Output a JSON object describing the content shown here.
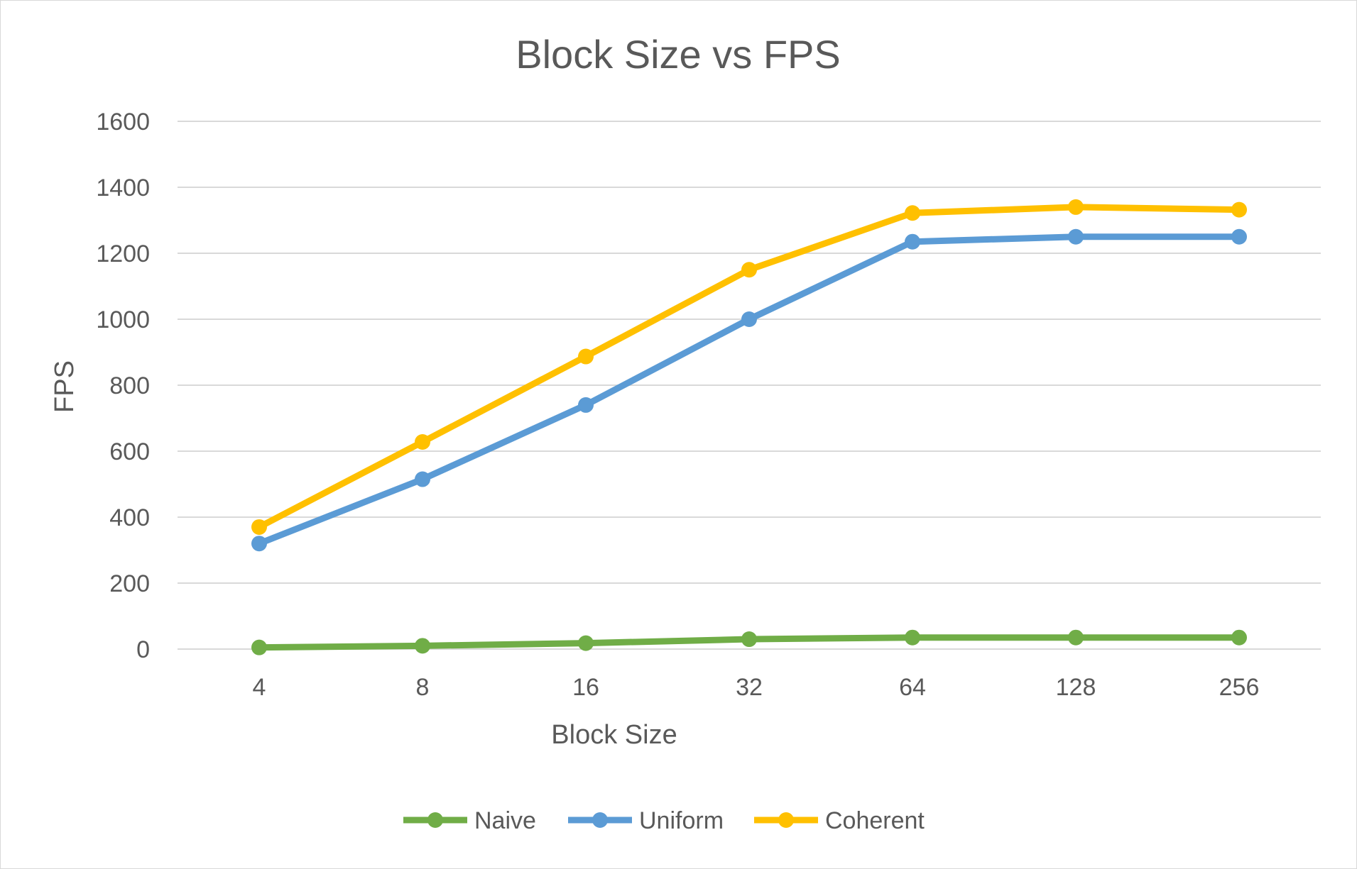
{
  "chart_data": {
    "type": "line",
    "title": "Block Size vs FPS",
    "xlabel": "Block Size",
    "ylabel": "FPS",
    "categories": [
      "4",
      "8",
      "16",
      "32",
      "64",
      "128",
      "256"
    ],
    "ylim": [
      0,
      1600
    ],
    "yticks": [
      0,
      200,
      400,
      600,
      800,
      1000,
      1200,
      1400,
      1600
    ],
    "grid": true,
    "legend_position": "bottom",
    "series": [
      {
        "name": "Naive",
        "color": "#70ad47",
        "values": [
          5,
          10,
          18,
          30,
          35,
          35,
          35
        ]
      },
      {
        "name": "Uniform",
        "color": "#5b9bd5",
        "values": [
          320,
          515,
          740,
          1000,
          1235,
          1250,
          1250
        ]
      },
      {
        "name": "Coherent",
        "color": "#ffc000",
        "values": [
          370,
          628,
          887,
          1150,
          1322,
          1340,
          1332
        ]
      }
    ]
  }
}
